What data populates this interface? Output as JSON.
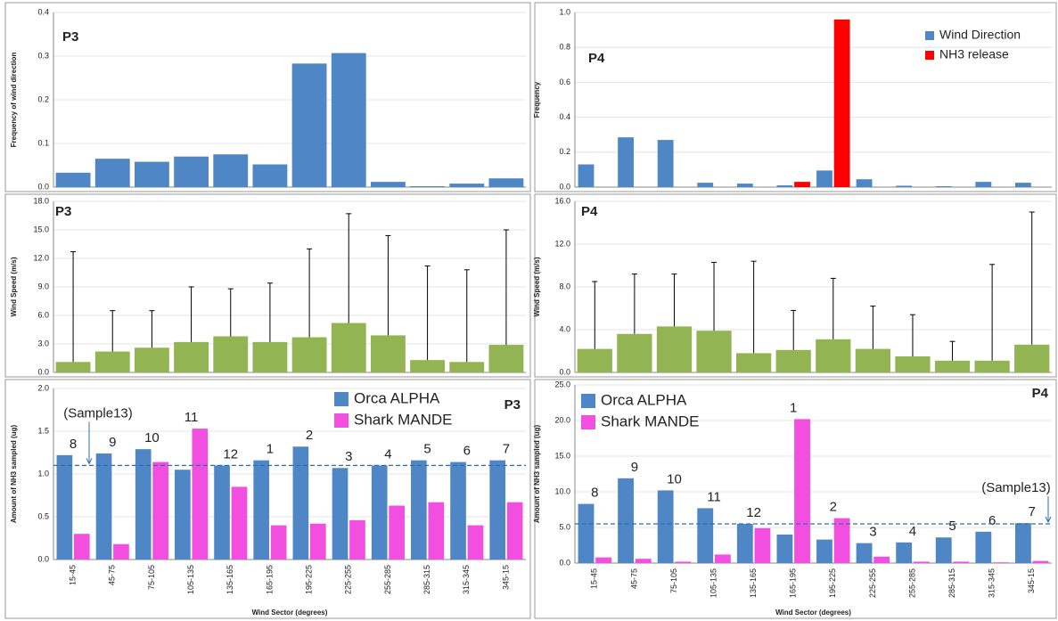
{
  "chart_data": [
    {
      "type": "bar",
      "title": "P3",
      "y_label": "Frequency of wind direction",
      "ylim": [
        0,
        0.4
      ],
      "yticks": [
        {
          "value": 0,
          "label": "0.0"
        },
        0.1,
        0.2,
        0.3,
        0.4
      ],
      "grid": true,
      "series": [
        {
          "color": "#4f86c6",
          "values": [
            0.033,
            0.065,
            0.058,
            0.07,
            0.075,
            0.052,
            0.283,
            0.307,
            0.012,
            0.002,
            0.008,
            0.02
          ]
        }
      ]
    },
    {
      "type": "bar",
      "title": "P4",
      "y_label": "Frequency",
      "ylim": [
        0,
        1
      ],
      "yticks": [
        {
          "value": 0,
          "label": "0.0"
        },
        0.2,
        0.4,
        0.6,
        0.8,
        {
          "value": 1,
          "label": "1.0"
        }
      ],
      "grid": true,
      "legend": "upper right",
      "series": [
        {
          "name": "Wind Direction",
          "color": "#4f86c6",
          "values": [
            0.13,
            0.285,
            0.27,
            0.025,
            0.02,
            0.01,
            0.095,
            0.045,
            0.008,
            0.005,
            0.03,
            0.025
          ]
        },
        {
          "name": "NH3 release",
          "color": "#ff0000",
          "values": [
            0,
            0,
            0,
            0,
            0,
            0.03,
            0.96,
            0,
            0,
            0,
            0,
            0
          ]
        }
      ]
    },
    {
      "type": "errorbar",
      "title": "P3",
      "y_label": "Wind Speed (m/s)",
      "ylim": [
        0,
        18
      ],
      "yticks": [
        {
          "value": 0,
          "label": "0.0"
        },
        {
          "value": 3,
          "label": "3.0"
        },
        {
          "value": 6,
          "label": "6.0"
        },
        {
          "value": 9,
          "label": "9.0"
        },
        {
          "value": 12,
          "label": "12.0"
        },
        {
          "value": 15,
          "label": "15.0"
        },
        {
          "value": 18,
          "label": "18.0"
        }
      ],
      "grid": true,
      "series": [
        {
          "color": "#93b453",
          "values": [
            1.1,
            2.2,
            2.6,
            3.2,
            3.8,
            3.2,
            3.7,
            5.2,
            3.9,
            1.3,
            1.1,
            2.9
          ],
          "max": [
            12.7,
            6.5,
            6.5,
            9.0,
            8.8,
            9.4,
            13.0,
            16.7,
            14.4,
            11.2,
            10.8,
            15.0
          ]
        }
      ]
    },
    {
      "type": "errorbar",
      "title": "P4",
      "y_label": "Wind Speed (m/s)",
      "ylim": [
        0,
        16
      ],
      "yticks": [
        {
          "value": 0,
          "label": "0.0"
        },
        {
          "value": 4,
          "label": "4.0"
        },
        {
          "value": 8,
          "label": "8.0"
        },
        {
          "value": 12,
          "label": "12.0"
        },
        {
          "value": 16,
          "label": "16.0"
        }
      ],
      "grid": true,
      "series": [
        {
          "color": "#93b453",
          "values": [
            2.2,
            3.6,
            4.3,
            3.9,
            1.8,
            2.1,
            3.1,
            2.2,
            1.5,
            1.1,
            1.1,
            2.6
          ],
          "max": [
            8.5,
            9.2,
            9.2,
            10.3,
            10.4,
            5.8,
            8.8,
            6.2,
            5.4,
            2.9,
            10.1,
            15.0
          ]
        }
      ]
    },
    {
      "type": "bar",
      "title": "P3",
      "y_label": "Amount of NH3 sampled (ug)",
      "x_label": "Wind Sector (degrees)",
      "categories": [
        "15-45",
        "45-75",
        "75-105",
        "105-135",
        "135-165",
        "165-195",
        "195-225",
        "225-255",
        "255-285",
        "285-315",
        "315-345",
        "345-15"
      ],
      "ylim": [
        0,
        2
      ],
      "yticks": [
        {
          "value": 0,
          "label": "0.0"
        },
        0.5,
        {
          "value": 1,
          "label": "1.0"
        },
        1.5,
        {
          "value": 2,
          "label": "2.0"
        }
      ],
      "grid": true,
      "legend": "upper center",
      "series": [
        {
          "name": "Orca ALPHA",
          "color": "#4f86c6",
          "values": [
            1.22,
            1.24,
            1.29,
            1.05,
            1.1,
            1.16,
            1.32,
            1.07,
            1.1,
            1.16,
            1.14,
            1.16
          ]
        },
        {
          "name": "Shark MANDE",
          "color": "#f24ee0",
          "values": [
            0.3,
            0.18,
            1.14,
            1.53,
            0.85,
            0.4,
            0.42,
            0.46,
            0.63,
            0.67,
            0.4,
            0.67
          ]
        }
      ],
      "sample_labels": [
        "8",
        "9",
        "10",
        "11",
        "12",
        "1",
        "2",
        "3",
        "4",
        "5",
        "6",
        "7"
      ],
      "reference": {
        "value": 1.1,
        "label": "(Sample13)"
      }
    },
    {
      "type": "bar",
      "title": "P4",
      "y_label": "Amount of NH3 sampled (ug)",
      "x_label": "Wind Sector (degrees)",
      "categories": [
        "15-45",
        "45-75",
        "75-105",
        "105-135",
        "135-165",
        "165-195",
        "195-225",
        "225-255",
        "255-285",
        "285-315",
        "315-345",
        "345-15"
      ],
      "ylim": [
        0,
        25
      ],
      "yticks": [
        {
          "value": 0,
          "label": "0.0"
        },
        {
          "value": 5,
          "label": "5.0"
        },
        {
          "value": 10,
          "label": "10.0"
        },
        {
          "value": 15,
          "label": "15.0"
        },
        {
          "value": 20,
          "label": "20.0"
        },
        {
          "value": 25,
          "label": "25.0"
        }
      ],
      "grid": true,
      "legend": "upper left",
      "series": [
        {
          "name": "Orca ALPHA",
          "color": "#4f86c6",
          "values": [
            8.3,
            11.9,
            10.2,
            7.7,
            5.5,
            4.0,
            3.3,
            2.8,
            2.9,
            3.6,
            4.4,
            5.6
          ]
        },
        {
          "name": "Shark MANDE",
          "color": "#f24ee0",
          "values": [
            0.8,
            0.6,
            0.2,
            1.2,
            4.9,
            20.2,
            6.3,
            0.9,
            0.2,
            0.2,
            0.1,
            0.3
          ]
        }
      ],
      "sample_labels": [
        "8",
        "9",
        "10",
        "11",
        "12",
        "1",
        "2",
        "3",
        "4",
        "5",
        "6",
        "7"
      ],
      "reference": {
        "value": 5.5,
        "label": "(Sample13)"
      }
    }
  ]
}
